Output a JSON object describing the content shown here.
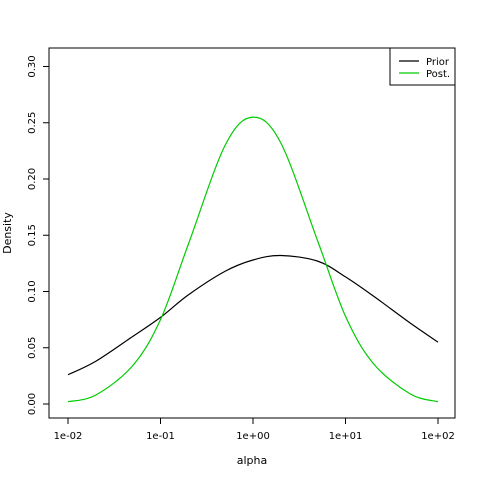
{
  "chart_data": {
    "type": "line",
    "xlabel": "alpha",
    "ylabel": "Density",
    "x_scale": "log10",
    "xlim": [
      0.01,
      100
    ],
    "ylim": [
      0,
      0.32
    ],
    "grid": false,
    "legend_position": "top-right",
    "x_ticks": [
      {
        "value": 0.01,
        "label": "1e-02"
      },
      {
        "value": 0.1,
        "label": "1e-01"
      },
      {
        "value": 1,
        "label": "1e+00"
      },
      {
        "value": 10,
        "label": "1e+01"
      },
      {
        "value": 100,
        "label": "1e+02"
      }
    ],
    "y_ticks": [
      {
        "value": 0.0,
        "label": "0.00"
      },
      {
        "value": 0.05,
        "label": "0.05"
      },
      {
        "value": 0.1,
        "label": "0.10"
      },
      {
        "value": 0.15,
        "label": "0.15"
      },
      {
        "value": 0.2,
        "label": "0.20"
      },
      {
        "value": 0.25,
        "label": "0.25"
      },
      {
        "value": 0.3,
        "label": "0.30"
      }
    ],
    "series": [
      {
        "name": "Prior",
        "color": "#000000",
        "x": [
          0.01,
          0.02,
          0.05,
          0.1,
          0.2,
          0.5,
          1,
          2,
          5,
          10,
          20,
          50,
          100
        ],
        "y": [
          0.026,
          0.038,
          0.06,
          0.077,
          0.097,
          0.118,
          0.128,
          0.132,
          0.127,
          0.113,
          0.096,
          0.072,
          0.055
        ]
      },
      {
        "name": "Post.",
        "color": "#00cc00",
        "x": [
          0.01,
          0.02,
          0.05,
          0.1,
          0.2,
          0.5,
          1,
          2,
          5,
          10,
          20,
          50,
          100
        ],
        "y": [
          0.002,
          0.008,
          0.034,
          0.075,
          0.142,
          0.23,
          0.255,
          0.232,
          0.145,
          0.078,
          0.036,
          0.009,
          0.002
        ]
      }
    ]
  }
}
